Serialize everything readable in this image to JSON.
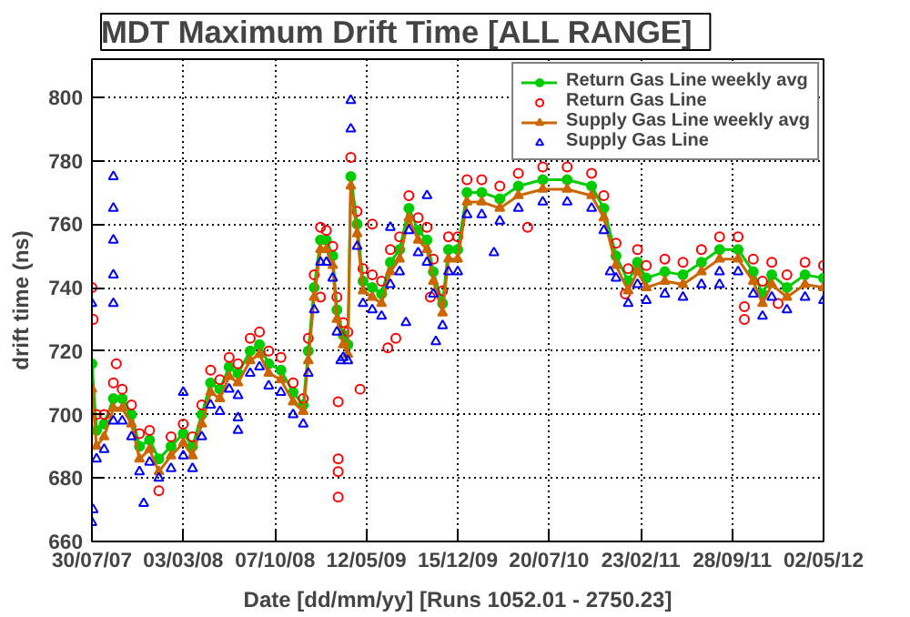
{
  "chart_data": {
    "type": "line",
    "title": "MDT Maximum Drift Time   [ALL RANGE]",
    "xlabel": "Date [dd/mm/yy] [Runs 1052.01 - 2750.23]",
    "ylabel": "drift time (ns)",
    "xlim": [
      "2007-07-30",
      "2012-05-02"
    ],
    "ylim": [
      660,
      812
    ],
    "xticks": [
      {
        "value": "2007-07-30",
        "label": "30/07/07"
      },
      {
        "value": "2008-03-03",
        "label": "03/03/08"
      },
      {
        "value": "2008-10-07",
        "label": "07/10/08"
      },
      {
        "value": "2009-05-12",
        "label": "12/05/09"
      },
      {
        "value": "2009-12-15",
        "label": "15/12/09"
      },
      {
        "value": "2010-07-20",
        "label": "20/07/10"
      },
      {
        "value": "2011-02-23",
        "label": "23/02/11"
      },
      {
        "value": "2011-09-28",
        "label": "28/09/11"
      },
      {
        "value": "2012-05-02",
        "label": "02/05/12"
      }
    ],
    "yticks": [
      660,
      680,
      700,
      720,
      740,
      760,
      780,
      800
    ],
    "grid": true,
    "legend": "top right",
    "series": [
      {
        "name": "Return Gas Line weekly avg",
        "marker": "circle",
        "color": "#00cc00",
        "x": [
          "2007-07-30",
          "2007-08-10",
          "2007-08-28",
          "2007-09-19",
          "2007-10-10",
          "2007-11-01",
          "2007-11-20",
          "2007-12-14",
          "2008-01-05",
          "2008-02-03",
          "2008-03-03",
          "2008-03-25",
          "2008-04-16",
          "2008-05-07",
          "2008-05-29",
          "2008-06-20",
          "2008-07-11",
          "2008-08-09",
          "2008-08-31",
          "2008-09-22",
          "2008-10-21",
          "2008-11-19",
          "2008-12-13",
          "2008-12-25",
          "2009-01-08",
          "2009-01-23",
          "2009-02-06",
          "2009-02-21",
          "2009-03-03",
          "2009-03-18",
          "2009-03-29",
          "2009-04-05",
          "2009-04-20",
          "2009-05-04",
          "2009-05-26",
          "2009-06-17",
          "2009-07-08",
          "2009-07-30",
          "2009-08-21",
          "2009-09-12",
          "2009-10-03",
          "2009-10-18",
          "2009-11-09",
          "2009-11-23",
          "2009-12-15",
          "2010-01-06",
          "2010-02-10",
          "2010-03-25",
          "2010-05-08",
          "2010-07-05",
          "2010-09-01",
          "2010-10-29",
          "2010-11-27",
          "2010-12-26",
          "2011-01-24",
          "2011-02-15",
          "2011-03-08",
          "2011-04-21",
          "2011-06-03",
          "2011-07-17",
          "2011-08-29",
          "2011-10-12",
          "2011-11-17",
          "2011-12-09",
          "2011-12-31",
          "2012-02-05",
          "2012-03-19",
          "2012-05-02"
        ],
        "values": [
          716,
          695,
          697,
          705,
          705,
          700,
          690,
          692,
          686,
          690,
          694,
          690,
          700,
          710,
          708,
          715,
          713,
          720,
          722,
          716,
          714,
          707,
          703,
          720,
          740,
          755,
          755,
          750,
          733,
          725,
          722,
          775,
          760,
          742,
          740,
          738,
          748,
          752,
          765,
          758,
          755,
          745,
          735,
          752,
          752,
          770,
          770,
          768,
          772,
          774,
          774,
          772,
          765,
          750,
          742,
          748,
          743,
          745,
          744,
          748,
          752,
          752,
          745,
          738,
          744,
          740,
          744,
          743
        ]
      },
      {
        "name": "Return Gas Line",
        "type": "scatter",
        "marker": "circle",
        "color": "#ff0000",
        "x": [
          "2007-07-30",
          "2007-08-10",
          "2007-08-28",
          "2007-09-19",
          "2007-10-10",
          "2007-11-01",
          "2007-11-20",
          "2007-12-14",
          "2008-01-05",
          "2008-02-03",
          "2008-03-03",
          "2008-03-25",
          "2008-04-16",
          "2008-05-07",
          "2008-05-29",
          "2008-06-20",
          "2008-07-11",
          "2008-08-09",
          "2008-08-31",
          "2008-09-22",
          "2008-10-21",
          "2008-11-19",
          "2008-12-13",
          "2008-12-25",
          "2009-01-08",
          "2009-01-23",
          "2009-02-06",
          "2009-02-21",
          "2009-03-03",
          "2009-03-18",
          "2009-03-29",
          "2009-04-05",
          "2009-04-20",
          "2009-05-04",
          "2009-05-26",
          "2009-06-17",
          "2009-07-08",
          "2009-07-30",
          "2009-08-21",
          "2009-09-12",
          "2009-10-03",
          "2009-10-18",
          "2009-11-09",
          "2009-11-23",
          "2009-12-15",
          "2010-01-06",
          "2010-02-10",
          "2010-03-25",
          "2010-05-08",
          "2010-07-05",
          "2010-09-01",
          "2010-10-29",
          "2010-11-27",
          "2010-12-26",
          "2011-01-24",
          "2011-02-15",
          "2011-03-08",
          "2011-04-21",
          "2011-06-03",
          "2011-07-17",
          "2011-08-29",
          "2011-10-12",
          "2011-11-17",
          "2011-12-09",
          "2011-12-31",
          "2012-02-05",
          "2012-03-19",
          "2012-05-02",
          "2007-08-02",
          "2007-09-26",
          "2009-01-23",
          "2009-03-06",
          "2009-03-06",
          "2009-03-06",
          "2009-03-06",
          "2009-04-27",
          "2009-05-26",
          "2009-07-02",
          "2009-07-21",
          "2009-10-11",
          "2010-05-30",
          "2011-01-17",
          "2011-10-27",
          "2011-10-27",
          "2012-01-15"
        ],
        "values": [
          740,
          700,
          700,
          710,
          708,
          703,
          694,
          695,
          676,
          693,
          697,
          693,
          703,
          714,
          711,
          718,
          716,
          724,
          726,
          720,
          718,
          710,
          705,
          724,
          744,
          759,
          758,
          753,
          737,
          729,
          726,
          781,
          764,
          746,
          744,
          742,
          752,
          756,
          769,
          762,
          759,
          749,
          739,
          756,
          756,
          774,
          774,
          772,
          776,
          778,
          778,
          776,
          769,
          754,
          746,
          752,
          747,
          749,
          748,
          752,
          756,
          756,
          749,
          742,
          748,
          744,
          748,
          747,
          730,
          716,
          737,
          704,
          686,
          682,
          674,
          708,
          760,
          721,
          724,
          737,
          759,
          738,
          734,
          730,
          735
        ]
      },
      {
        "name": "Supply Gas Line weekly avg",
        "marker": "triangle",
        "color": "#cc6600",
        "x": [
          "2007-07-30",
          "2007-08-10",
          "2007-08-28",
          "2007-09-19",
          "2007-10-10",
          "2007-11-01",
          "2007-11-20",
          "2007-12-14",
          "2008-01-05",
          "2008-02-03",
          "2008-03-03",
          "2008-03-25",
          "2008-04-16",
          "2008-05-07",
          "2008-05-29",
          "2008-06-20",
          "2008-07-11",
          "2008-08-09",
          "2008-08-31",
          "2008-09-22",
          "2008-10-21",
          "2008-11-19",
          "2008-12-13",
          "2008-12-25",
          "2009-01-08",
          "2009-01-23",
          "2009-02-06",
          "2009-02-21",
          "2009-03-03",
          "2009-03-18",
          "2009-03-29",
          "2009-04-05",
          "2009-04-20",
          "2009-05-04",
          "2009-05-26",
          "2009-06-17",
          "2009-07-08",
          "2009-07-30",
          "2009-08-21",
          "2009-09-12",
          "2009-10-03",
          "2009-10-18",
          "2009-11-09",
          "2009-11-23",
          "2009-12-15",
          "2010-01-06",
          "2010-02-10",
          "2010-03-25",
          "2010-05-08",
          "2010-07-05",
          "2010-09-01",
          "2010-10-29",
          "2010-11-27",
          "2010-12-26",
          "2011-01-24",
          "2011-02-15",
          "2011-03-08",
          "2011-04-21",
          "2011-06-03",
          "2011-07-17",
          "2011-08-29",
          "2011-10-12",
          "2011-11-17",
          "2011-12-09",
          "2011-12-31",
          "2012-02-05",
          "2012-03-19",
          "2012-05-02"
        ],
        "values": [
          708,
          690,
          693,
          702,
          702,
          697,
          686,
          689,
          682,
          687,
          691,
          687,
          697,
          707,
          705,
          712,
          710,
          717,
          719,
          713,
          711,
          704,
          701,
          717,
          737,
          752,
          752,
          747,
          730,
          722,
          719,
          772,
          757,
          739,
          737,
          735,
          745,
          749,
          762,
          755,
          752,
          742,
          732,
          749,
          749,
          767,
          767,
          765,
          769,
          771,
          771,
          769,
          762,
          747,
          739,
          745,
          740,
          742,
          741,
          745,
          749,
          749,
          742,
          735,
          741,
          737,
          741,
          740
        ]
      },
      {
        "name": "Supply Gas Line",
        "type": "scatter",
        "marker": "triangle",
        "color": "#0000ff",
        "x": [
          "2007-07-30",
          "2007-08-10",
          "2007-08-28",
          "2007-09-19",
          "2007-10-10",
          "2007-11-01",
          "2007-11-20",
          "2007-12-14",
          "2008-01-05",
          "2008-02-03",
          "2008-03-03",
          "2008-03-25",
          "2008-04-16",
          "2008-05-07",
          "2008-05-29",
          "2008-06-20",
          "2008-07-11",
          "2008-08-09",
          "2008-08-31",
          "2008-09-22",
          "2008-10-21",
          "2008-11-19",
          "2008-12-13",
          "2008-12-25",
          "2009-01-08",
          "2009-01-23",
          "2009-02-06",
          "2009-02-21",
          "2009-03-03",
          "2009-03-18",
          "2009-03-29",
          "2009-04-05",
          "2009-04-20",
          "2009-05-04",
          "2009-05-26",
          "2009-06-17",
          "2009-07-08",
          "2009-07-30",
          "2009-08-21",
          "2009-09-12",
          "2009-10-03",
          "2009-10-18",
          "2009-11-09",
          "2009-11-23",
          "2009-12-15",
          "2010-01-06",
          "2010-02-10",
          "2010-03-25",
          "2010-05-08",
          "2010-07-05",
          "2010-09-01",
          "2010-10-29",
          "2010-11-27",
          "2010-12-26",
          "2011-01-24",
          "2011-02-15",
          "2011-03-08",
          "2011-04-21",
          "2011-06-03",
          "2011-07-17",
          "2011-08-29",
          "2011-10-12",
          "2011-11-17",
          "2011-12-09",
          "2011-12-31",
          "2012-02-05",
          "2012-03-19",
          "2012-05-02",
          "2007-07-30",
          "2007-08-02",
          "2007-09-19",
          "2007-09-19",
          "2007-09-19",
          "2007-09-19",
          "2007-09-19",
          "2007-11-30",
          "2008-03-03",
          "2008-07-11",
          "2008-07-11",
          "2009-03-12",
          "2009-04-05",
          "2009-07-08",
          "2009-08-14",
          "2009-10-03",
          "2009-10-24",
          "2010-03-11",
          "2010-12-12",
          "2011-08-29"
        ],
        "values": [
          735,
          686,
          689,
          698,
          698,
          693,
          682,
          685,
          680,
          683,
          687,
          683,
          693,
          703,
          701,
          708,
          706,
          713,
          715,
          709,
          707,
          700,
          697,
          713,
          733,
          748,
          748,
          743,
          726,
          718,
          717,
          790,
          753,
          735,
          733,
          731,
          741,
          745,
          758,
          751,
          748,
          738,
          728,
          745,
          745,
          763,
          763,
          761,
          765,
          767,
          767,
          765,
          758,
          743,
          735,
          741,
          736,
          738,
          737,
          741,
          745,
          745,
          738,
          731,
          737,
          733,
          737,
          736,
          666,
          670,
          775,
          765,
          755,
          744,
          735,
          672,
          707,
          699,
          695,
          717,
          799,
          759,
          729,
          769,
          723,
          751,
          745,
          741
        ]
      }
    ]
  }
}
